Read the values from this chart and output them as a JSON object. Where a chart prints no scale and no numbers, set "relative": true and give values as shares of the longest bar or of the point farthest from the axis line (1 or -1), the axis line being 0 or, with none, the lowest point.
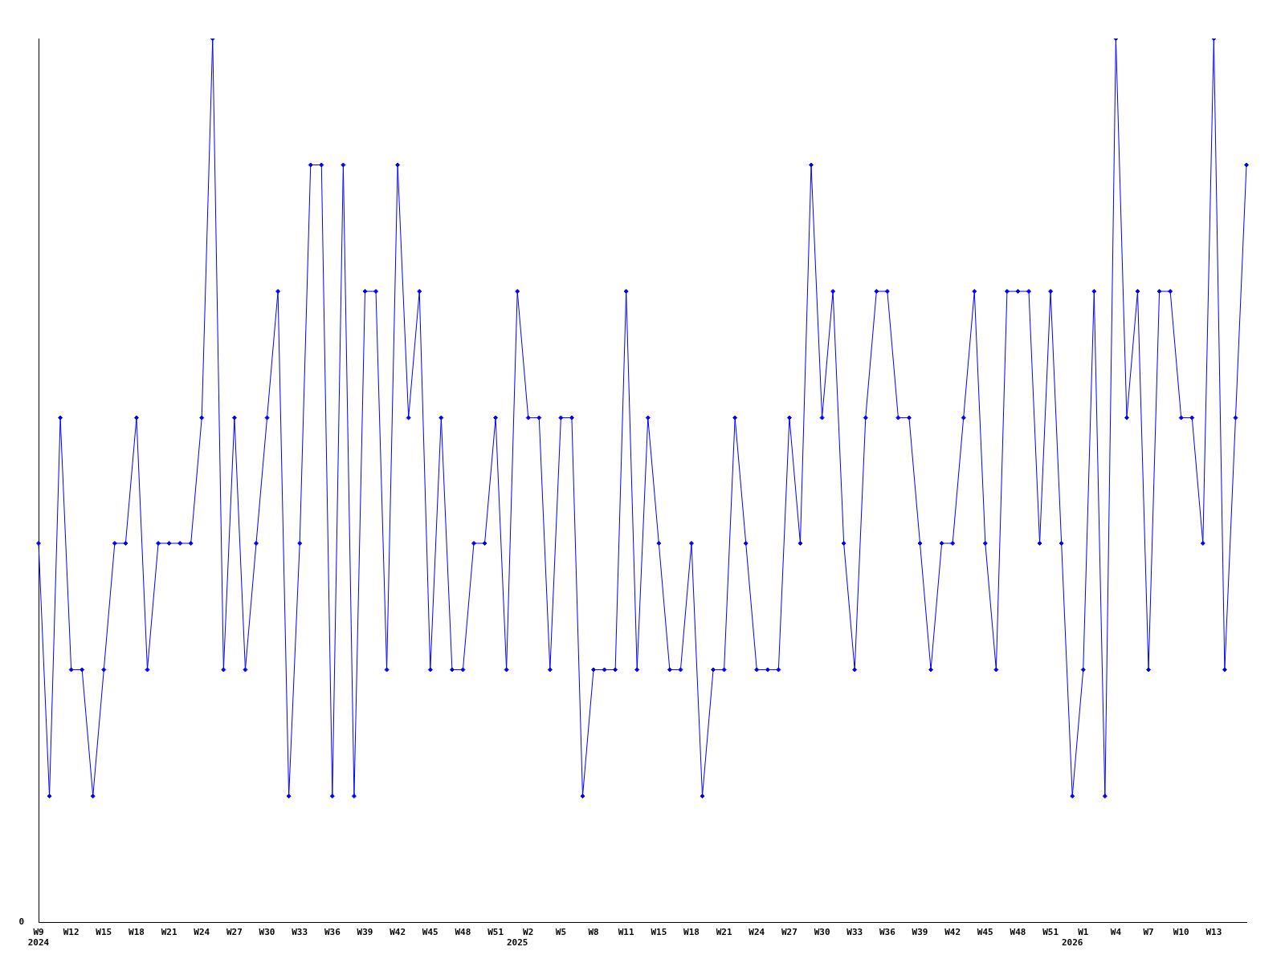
{
  "chart_data": {
    "type": "line",
    "relative": true,
    "grid": false,
    "legend": false,
    "marker": "diamond",
    "line_style": "solid",
    "annotations": [
      "0"
    ],
    "categories": [
      "W9\n2024",
      null,
      null,
      "W12",
      null,
      null,
      "W15",
      null,
      null,
      "W18",
      null,
      null,
      "W21",
      null,
      null,
      "W24",
      null,
      null,
      "W27",
      null,
      null,
      "W30",
      null,
      null,
      "W33",
      null,
      null,
      "W36",
      null,
      null,
      "W39",
      null,
      null,
      "W42",
      null,
      null,
      "W45",
      null,
      null,
      "W48",
      null,
      null,
      "W51",
      null,
      "\n2025",
      "W2",
      null,
      null,
      "W5",
      null,
      null,
      "W8",
      null,
      null,
      "W11",
      null,
      null,
      "W15",
      null,
      null,
      "W18",
      null,
      null,
      "W21",
      null,
      null,
      "W24",
      null,
      null,
      "W27",
      null,
      null,
      "W30",
      null,
      null,
      "W33",
      null,
      null,
      "W36",
      null,
      null,
      "W39",
      null,
      null,
      "W42",
      null,
      null,
      "W45",
      null,
      null,
      "W48",
      null,
      null,
      "W51",
      null,
      "\n2026",
      "W1",
      null,
      null,
      "W4",
      null,
      null,
      "W7",
      null,
      null,
      "W10",
      null,
      null,
      "W13",
      null,
      null,
      null
    ],
    "series": [
      {
        "color": "#0000ff",
        "values": [
          0.429,
          0.143,
          0.571,
          0.286,
          0.286,
          0.143,
          0.286,
          0.429,
          0.429,
          0.571,
          0.286,
          0.429,
          0.429,
          0.429,
          0.429,
          0.571,
          1,
          0.286,
          0.571,
          0.286,
          0.429,
          0.571,
          0.714,
          0.143,
          0.429,
          0.857,
          0.857,
          0.143,
          0.857,
          0.143,
          0.714,
          0.714,
          0.286,
          0.857,
          0.571,
          0.714,
          0.286,
          0.571,
          0.286,
          0.286,
          0.429,
          0.429,
          0.571,
          0.286,
          0.714,
          0.571,
          0.571,
          0.286,
          0.571,
          0.571,
          0.143,
          0.286,
          0.286,
          0.286,
          0.714,
          0.286,
          0.571,
          0.429,
          0.286,
          0.286,
          0.429,
          0.143,
          0.286,
          0.286,
          0.571,
          0.429,
          0.286,
          0.286,
          0.286,
          0.571,
          0.429,
          0.857,
          0.571,
          0.714,
          0.429,
          0.286,
          0.571,
          0.714,
          0.714,
          0.571,
          0.571,
          0.429,
          0.286,
          0.429,
          0.429,
          0.571,
          0.714,
          0.429,
          0.286,
          0.714,
          0.714,
          0.714,
          0.429,
          0.714,
          0.429,
          0.143,
          0.286,
          0.714,
          0.143,
          1,
          0.571,
          0.714,
          0.286,
          0.714,
          0.714,
          0.571,
          0.571,
          0.429,
          1,
          0.286,
          0.571,
          0.857
        ]
      }
    ]
  }
}
